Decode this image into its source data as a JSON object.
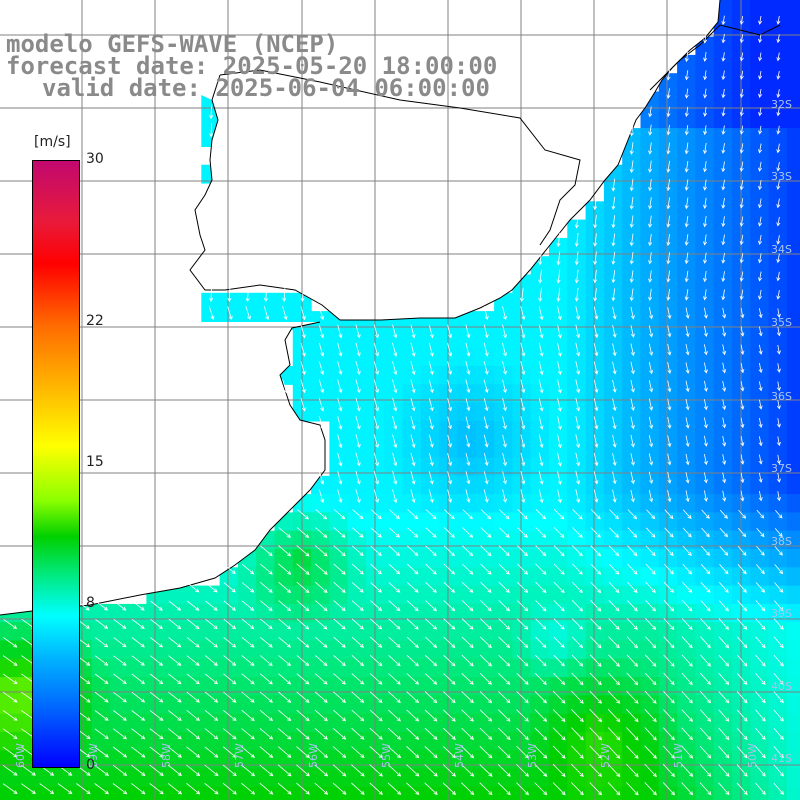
{
  "header": {
    "line1": "modelo GEFS-WAVE (NCEP)",
    "line2": "forecast date: 2025-05-20 18:00:00",
    "line3": "valid date: 2025-06-04 06:00:00"
  },
  "colorbar": {
    "unit": "[m/s]",
    "ticks": [
      {
        "label": "30",
        "value": 30
      },
      {
        "label": "22",
        "value": 22
      },
      {
        "label": "15",
        "value": 15
      },
      {
        "label": "8",
        "value": 8
      },
      {
        "label": "0",
        "value": 0
      }
    ],
    "min": 0,
    "max": 30,
    "colors": [
      "#0000ff",
      "#0068ff",
      "#00b4ff",
      "#00ffff",
      "#00e87a",
      "#00d000",
      "#8cff00",
      "#ffff00",
      "#ffb400",
      "#ff6a00",
      "#ff0000",
      "#e81a3a",
      "#c2086f"
    ]
  },
  "map": {
    "lat_labels": [
      "32S",
      "33S",
      "34S",
      "35S",
      "36S",
      "37S",
      "38S",
      "39S",
      "40S",
      "41S"
    ],
    "lon_labels": [
      "60W",
      "59W",
      "58W",
      "57W",
      "56W",
      "55W",
      "54W",
      "53W",
      "52W",
      "51W",
      "50W"
    ],
    "lat_range": [
      -41.3,
      -30.5
    ],
    "lon_range": [
      -60.2,
      -49.5
    ],
    "wind_direction": "south-southeast",
    "land_color": "#ffffff",
    "grid_color": "#808080",
    "coast_color": "#000000"
  }
}
